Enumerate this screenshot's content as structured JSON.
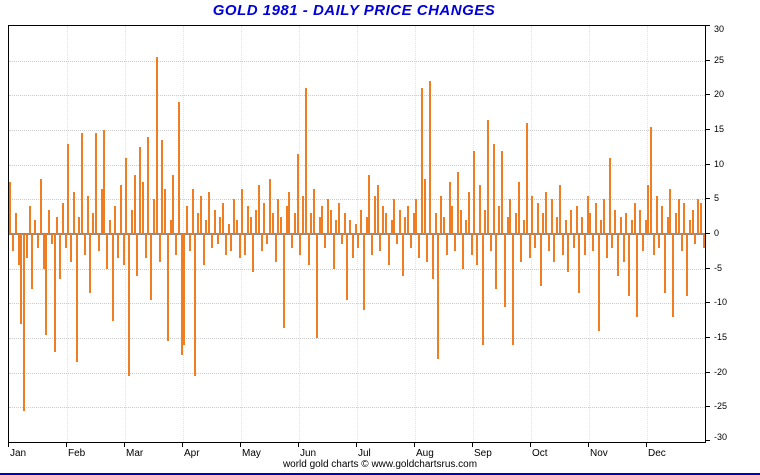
{
  "title": "GOLD 1981 - DAILY PRICE CHANGES",
  "footer": "world gold charts © www.goldchartsrus.com",
  "colors": {
    "bar": "#ef7d23",
    "title": "#0000dd",
    "zero_line": "#8a8a8a",
    "grid": "#cccccc",
    "axis": "#000000",
    "footer_line": "#0000cc"
  },
  "chart_data": {
    "type": "bar",
    "title": "GOLD 1981 - DAILY PRICE CHANGES",
    "xlabel": "",
    "ylabel": "",
    "ylim": [
      -30,
      30
    ],
    "y_ticks": [
      30,
      25,
      20,
      15,
      10,
      5,
      0,
      -5,
      -10,
      -15,
      -20,
      -25,
      -30
    ],
    "grid": true,
    "months": [
      "Jan",
      "Feb",
      "Mar",
      "Apr",
      "May",
      "Jun",
      "Jul",
      "Aug",
      "Sep",
      "Oct",
      "Nov",
      "Dec"
    ],
    "values": [
      7.5,
      -2.5,
      3.0,
      -4.5,
      -13.0,
      -25.5,
      -3.5,
      4.0,
      -8.0,
      2.0,
      -2.0,
      8.0,
      -5.0,
      -14.5,
      3.5,
      -1.5,
      -17.0,
      2.5,
      -6.5,
      4.5,
      -2.0,
      13.0,
      -4.0,
      6.0,
      -18.5,
      2.5,
      14.5,
      -3.0,
      5.5,
      -8.5,
      3.0,
      14.5,
      -2.5,
      6.5,
      15.0,
      -5.0,
      2.0,
      -12.5,
      4.0,
      -3.5,
      7.0,
      -4.5,
      11.0,
      -20.5,
      3.5,
      8.5,
      -6.0,
      12.5,
      7.5,
      -3.5,
      14.0,
      -9.5,
      5.0,
      25.5,
      -4.0,
      13.5,
      6.5,
      -15.5,
      2.0,
      8.5,
      -3.0,
      19.0,
      -17.5,
      -16.0,
      4.0,
      -2.5,
      6.5,
      -20.5,
      3.0,
      5.5,
      -4.5,
      2.0,
      6.0,
      -2.0,
      3.5,
      -1.5,
      2.5,
      4.5,
      -3.0,
      1.5,
      -2.5,
      5.0,
      2.0,
      -3.5,
      6.5,
      -3.0,
      4.0,
      2.5,
      -5.5,
      3.5,
      7.0,
      -2.5,
      4.5,
      -1.5,
      8.0,
      3.0,
      -4.0,
      5.0,
      2.5,
      -13.5,
      4.0,
      6.0,
      -2.0,
      3.0,
      11.5,
      -3.0,
      5.5,
      21.0,
      -4.5,
      3.0,
      6.5,
      -15.0,
      2.5,
      4.0,
      -2.0,
      5.0,
      3.5,
      -5.0,
      2.0,
      4.5,
      -1.5,
      3.0,
      -9.5,
      2.0,
      -3.5,
      1.5,
      -2.0,
      3.5,
      -11.0,
      2.5,
      8.5,
      -3.0,
      5.5,
      7.0,
      -2.5,
      4.0,
      3.0,
      -4.5,
      2.0,
      5.0,
      -1.5,
      3.5,
      -6.0,
      2.5,
      4.0,
      -2.0,
      3.0,
      5.0,
      -3.5,
      21.0,
      8.0,
      -4.0,
      22.0,
      -6.5,
      3.0,
      -18.0,
      5.5,
      2.5,
      -3.0,
      7.5,
      4.0,
      -2.5,
      9.0,
      3.5,
      -5.0,
      2.0,
      6.0,
      -3.0,
      12.0,
      -4.5,
      7.0,
      -16.0,
      3.5,
      16.5,
      -2.5,
      13.0,
      -8.0,
      4.0,
      12.0,
      -10.5,
      2.5,
      5.0,
      -16.0,
      3.0,
      7.5,
      -4.0,
      2.0,
      16.0,
      -3.5,
      5.5,
      -2.0,
      4.5,
      -7.5,
      3.0,
      6.0,
      -2.5,
      5.0,
      -4.0,
      2.5,
      7.0,
      -3.0,
      2.0,
      -5.5,
      3.5,
      -2.0,
      4.0,
      -8.5,
      2.5,
      -3.0,
      5.5,
      3.0,
      -2.5,
      4.5,
      -14.0,
      2.0,
      5.0,
      -3.5,
      11.0,
      -2.0,
      3.5,
      -6.0,
      2.5,
      -4.0,
      3.0,
      -9.0,
      2.0,
      4.5,
      -12.0,
      3.5,
      -2.5,
      2.0,
      7.0,
      15.5,
      -3.0,
      5.5,
      -2.0,
      4.0,
      -8.5,
      2.5,
      6.5,
      -12.0,
      3.0,
      5.0,
      -2.5,
      4.5,
      -9.0,
      2.0,
      3.5,
      -1.5,
      5.0,
      4.5,
      -2.0
    ]
  }
}
